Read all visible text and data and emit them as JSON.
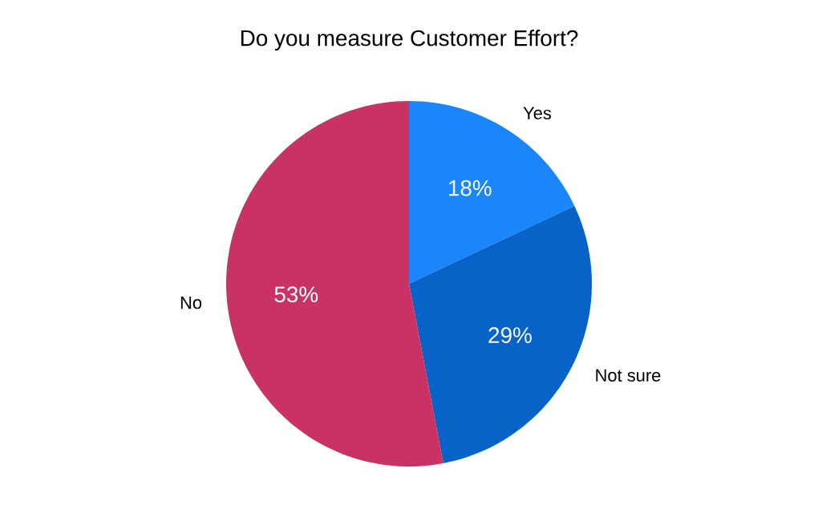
{
  "chart_data": {
    "type": "pie",
    "title": "Do you measure Customer Effort?",
    "categories": [
      "Yes",
      "Not sure",
      "No"
    ],
    "values": [
      18,
      29,
      53
    ],
    "value_labels": [
      "18%",
      "29%",
      "53%"
    ],
    "colors": [
      "#1a86fa",
      "#0863c9",
      "#c83264"
    ]
  }
}
